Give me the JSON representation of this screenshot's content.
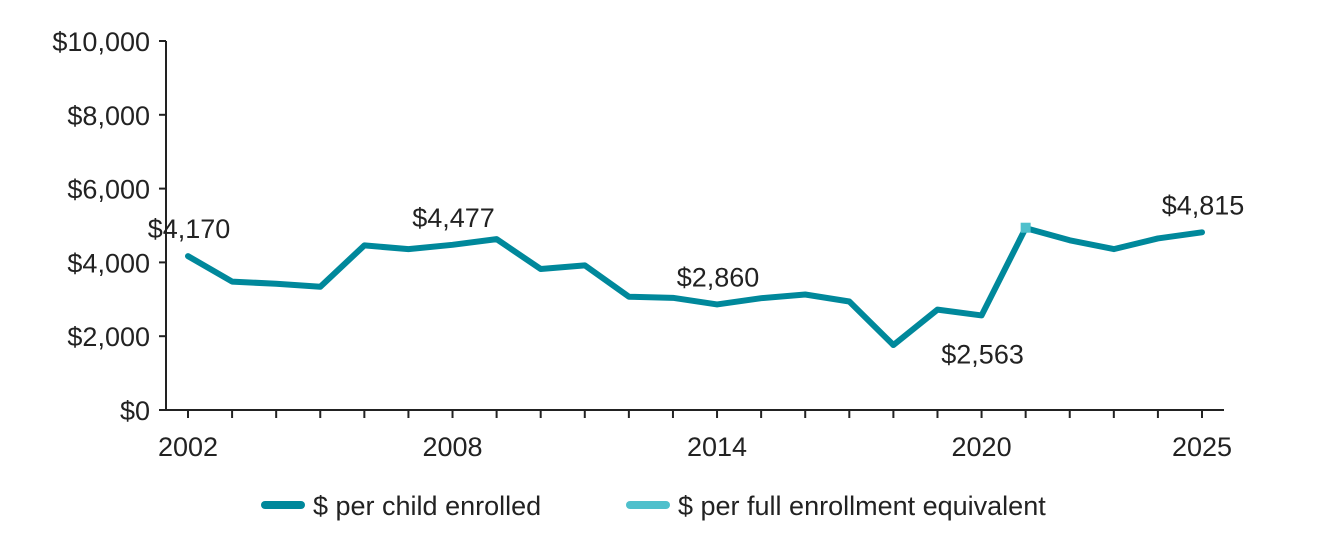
{
  "chart_data": {
    "type": "line",
    "title": "",
    "xlabel": "",
    "ylabel": "",
    "ylim": [
      0,
      10000
    ],
    "xlim": [
      2002,
      2025
    ],
    "yticks": [
      0,
      2000,
      4000,
      6000,
      8000,
      10000
    ],
    "ytick_labels": [
      "$0",
      "$2,000",
      "$4,000",
      "$6,000",
      "$8,000",
      "$10,000"
    ],
    "xticks_labeled": [
      2002,
      2008,
      2014,
      2020,
      2025
    ],
    "xtick_labels": [
      "2002",
      "2008",
      "2014",
      "2020",
      "2025"
    ],
    "legend_position": "bottom",
    "series": [
      {
        "name": "$ per child enrolled",
        "color": "#00889b",
        "x": [
          2002,
          2003,
          2004,
          2005,
          2006,
          2007,
          2008,
          2009,
          2010,
          2011,
          2012,
          2013,
          2014,
          2015,
          2016,
          2017,
          2018,
          2019,
          2020,
          2021,
          2022,
          2023,
          2024,
          2025
        ],
        "values": [
          4170,
          3480,
          3420,
          3340,
          4460,
          4360,
          4477,
          4630,
          3820,
          3920,
          3070,
          3040,
          2860,
          3030,
          3130,
          2940,
          1760,
          2720,
          2563,
          4930,
          4600,
          4360,
          4650,
          4815
        ]
      },
      {
        "name": "$ per full enrollment equivalent",
        "color": "#4fc0cc",
        "x": [
          2021
        ],
        "values": [
          4940
        ]
      }
    ],
    "annotations": [
      {
        "x": 2002,
        "value": 4170,
        "text": "$4,170",
        "position": "above"
      },
      {
        "x": 2008,
        "value": 4477,
        "text": "$4,477",
        "position": "above"
      },
      {
        "x": 2014,
        "value": 2860,
        "text": "$2,860",
        "position": "above"
      },
      {
        "x": 2020,
        "value": 2563,
        "text": "$2,563",
        "position": "below"
      },
      {
        "x": 2025,
        "value": 4815,
        "text": "$4,815",
        "position": "above"
      }
    ]
  }
}
